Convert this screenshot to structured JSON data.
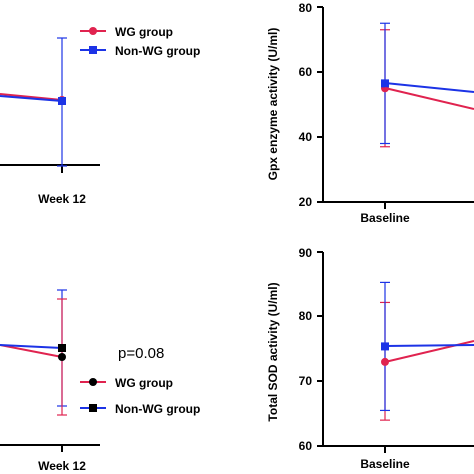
{
  "colors": {
    "wg": "#e0234f",
    "non_wg": "#1c33e6",
    "axis": "#000000"
  },
  "chart_data": [
    {
      "type": "line",
      "panel": "top-left",
      "xlabel": "",
      "ylabel": "",
      "categories": [
        "Week 12"
      ],
      "series": [
        {
          "name": "WG group",
          "values": [
            null
          ]
        },
        {
          "name": "Non-WG group",
          "values": [
            null
          ]
        }
      ],
      "legend": {
        "placement": "top",
        "entries": [
          "WG group",
          "Non-WG group"
        ]
      }
    },
    {
      "type": "line",
      "panel": "top-right",
      "xlabel": "",
      "ylabel": "Gpx enzyme activity (U/ml)",
      "ylim": [
        20,
        80
      ],
      "yticks": [
        "20",
        "40",
        "60",
        "80"
      ],
      "categories": [
        "Baseline"
      ],
      "series": [
        {
          "name": "WG group",
          "values": [
            55
          ],
          "error_low": [
            37
          ],
          "error_high": [
            73
          ]
        },
        {
          "name": "Non-WG group",
          "values": [
            56.5
          ],
          "error_low": [
            38
          ],
          "error_high": [
            75
          ]
        }
      ]
    },
    {
      "type": "line",
      "panel": "bottom-left",
      "xlabel": "",
      "ylabel": "",
      "categories": [
        "Week 12"
      ],
      "annotation": "p=0.08",
      "series": [
        {
          "name": "WG group",
          "values": [
            null
          ]
        },
        {
          "name": "Non-WG group",
          "values": [
            null
          ]
        }
      ],
      "legend": {
        "placement": "bottom",
        "entries": [
          "WG group",
          "Non-WG group"
        ]
      }
    },
    {
      "type": "line",
      "panel": "bottom-right",
      "xlabel": "",
      "ylabel": "Total SOD activity (U/ml)",
      "ylim": [
        60,
        90
      ],
      "yticks": [
        "60",
        "70",
        "80",
        "90"
      ],
      "categories": [
        "Baseline"
      ],
      "series": [
        {
          "name": "WG group",
          "values": [
            73.0
          ],
          "error_low": [
            64
          ],
          "error_high": [
            82.2
          ]
        },
        {
          "name": "Non-WG group",
          "values": [
            75.4
          ],
          "error_low": [
            65.5
          ],
          "error_high": [
            85.3
          ]
        }
      ]
    }
  ]
}
